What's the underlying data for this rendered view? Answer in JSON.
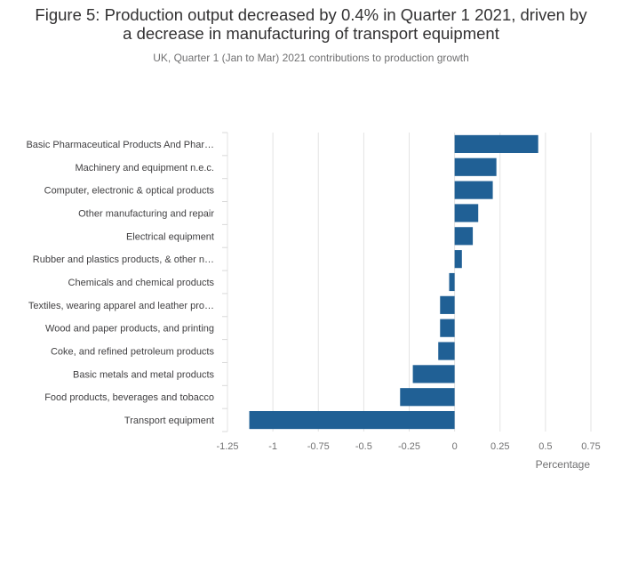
{
  "title": "Figure 5: Production output decreased by 0.4% in Quarter 1 2021, driven by a decrease in manufacturing of transport equipment",
  "subtitle": "UK, Quarter 1 (Jan to Mar) 2021 contributions to production growth",
  "chart_data": {
    "type": "bar",
    "orientation": "horizontal",
    "xlabel": "Percentage",
    "ylabel": "",
    "xlim": [
      -1.25,
      0.75
    ],
    "xticks": [
      -1.25,
      -1,
      -0.75,
      -0.5,
      -0.25,
      0,
      0.25,
      0.5,
      0.75
    ],
    "xtick_labels": [
      "-1.25",
      "-1",
      "-0.75",
      "-0.5",
      "-0.25",
      "0",
      "0.25",
      "0.5",
      "0.75"
    ],
    "grid": true,
    "bar_color": "#206095",
    "grid_color": "#e3e3e3",
    "categories": [
      "Basic Pharmaceutical Products And Phar…",
      "Machinery and equipment n.e.c.",
      "Computer, electronic & optical products",
      "Other manufacturing and repair",
      "Electrical equipment",
      "Rubber and plastics products, & other n…",
      "Chemicals and chemical products",
      "Textiles, wearing apparel and leather pro…",
      "Wood and paper products, and printing",
      "Coke, and refined petroleum products",
      "Basic metals and metal products",
      "Food products, beverages and tobacco",
      "Transport equipment"
    ],
    "values": [
      0.46,
      0.23,
      0.21,
      0.13,
      0.1,
      0.04,
      -0.03,
      -0.08,
      -0.08,
      -0.09,
      -0.23,
      -0.3,
      -1.13
    ]
  }
}
